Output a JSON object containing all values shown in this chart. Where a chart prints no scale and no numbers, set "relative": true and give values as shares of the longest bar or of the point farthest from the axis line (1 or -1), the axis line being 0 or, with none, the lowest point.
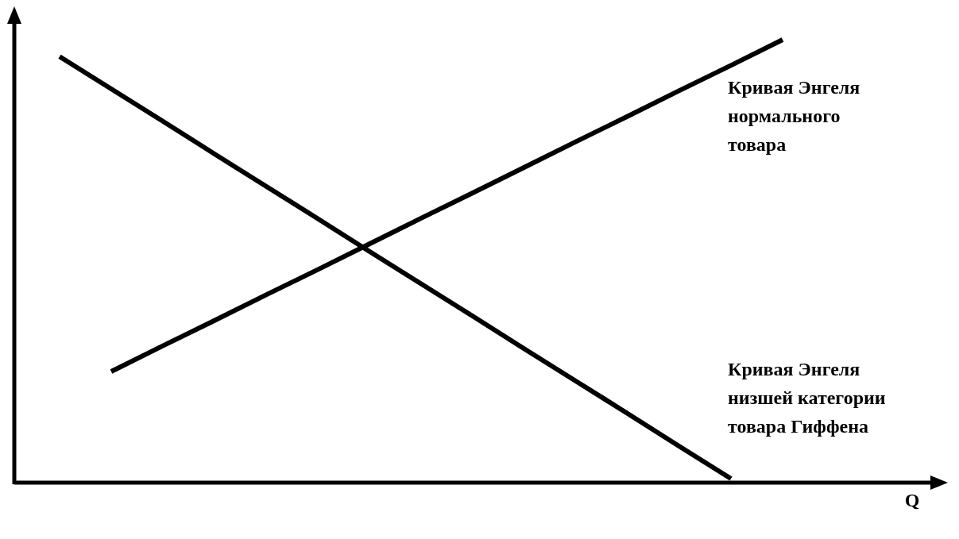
{
  "chart_data": {
    "type": "line",
    "relative": true,
    "annotations": [
      "Q"
    ],
    "line_style": "solid",
    "categories": [
      null,
      null,
      null,
      null,
      null,
      null,
      null,
      null,
      null,
      null,
      null,
      null,
      null,
      null,
      null
    ],
    "series": [
      {
        "name": "Кривая Энгеля нормального товара",
        "color": "#000000",
        "values": [
          null,
          0.251,
          0.309,
          0.366,
          0.424,
          0.481,
          0.539,
          0.597,
          0.654,
          0.712,
          0.77,
          0.827,
          0.885,
          0.942,
          1
        ]
      },
      {
        "name": "Кривая Энгеля низшей категории товара Гиффена",
        "color": "#000000",
        "values": [
          0.962,
          0.889,
          0.816,
          0.742,
          0.669,
          0.596,
          0.522,
          0.449,
          0.376,
          0.302,
          0.229,
          0.156,
          0.082,
          0.009,
          null
        ]
      }
    ]
  }
}
